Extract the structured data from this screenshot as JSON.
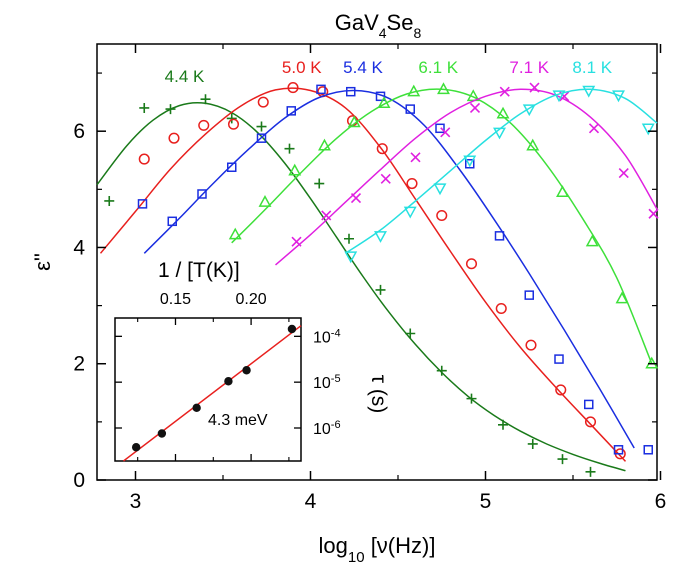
{
  "chart_data": [
    {
      "type": "scatter",
      "title": "GaV4Se8",
      "title_main": "GaV",
      "title_sub1": "4",
      "title_mid": "Se",
      "title_sub2": "8",
      "xlabel": "log10 [ν(Hz)]",
      "xlabel_main": "log",
      "xlabel_sub": "10",
      "xlabel_rest": " [ν(Hz)]",
      "ylabel": "ε\"",
      "xlim": [
        2.78,
        5.98
      ],
      "ylim": [
        0,
        7.5
      ],
      "x_ticks": [
        3,
        4,
        5,
        6
      ],
      "y_ticks": [
        0,
        2,
        4,
        6
      ],
      "x_tick_labels": [
        "3",
        "4",
        "5",
        "6"
      ],
      "y_tick_labels": [
        "0",
        "2",
        "4",
        "6"
      ],
      "grid": false,
      "series": [
        {
          "name": "4.4 K",
          "color": "#1a7a1a",
          "marker": "plus",
          "x": [
            2.85,
            3.05,
            3.2,
            3.4,
            3.55,
            3.72,
            3.88,
            4.05,
            4.22,
            4.4,
            4.57,
            4.75,
            4.92,
            5.1,
            5.27,
            5.44,
            5.6
          ],
          "y": [
            4.8,
            6.4,
            6.38,
            6.55,
            6.22,
            6.08,
            5.7,
            5.1,
            4.15,
            3.27,
            2.52,
            1.88,
            1.4,
            0.95,
            0.62,
            0.36,
            0.14
          ],
          "fit_x": [
            2.78,
            2.95,
            3.1,
            3.25,
            3.4,
            3.55,
            3.7,
            3.85,
            4.0,
            4.15,
            4.3,
            4.45,
            4.6,
            4.75,
            4.9,
            5.05,
            5.2,
            5.35,
            5.5,
            5.65,
            5.8
          ],
          "fit_y": [
            5.08,
            5.75,
            6.19,
            6.44,
            6.48,
            6.32,
            5.97,
            5.46,
            4.84,
            4.17,
            3.5,
            2.88,
            2.33,
            1.85,
            1.44,
            1.11,
            0.84,
            0.62,
            0.44,
            0.29,
            0.16
          ]
        },
        {
          "name": "5.0 K",
          "color": "#e8201e",
          "marker": "circle",
          "x": [
            3.05,
            3.22,
            3.39,
            3.56,
            3.73,
            3.9,
            4.07,
            4.24,
            4.41,
            4.58,
            4.75,
            4.92,
            5.09,
            5.26,
            5.43,
            5.6,
            5.77
          ],
          "y": [
            5.52,
            5.88,
            6.1,
            6.12,
            6.5,
            6.75,
            6.68,
            6.18,
            5.7,
            5.1,
            4.55,
            3.72,
            2.95,
            2.32,
            1.55,
            1.0,
            0.45
          ],
          "fit_x": [
            2.8,
            3.0,
            3.2,
            3.4,
            3.6,
            3.8,
            4.0,
            4.2,
            4.4,
            4.6,
            4.8,
            5.0,
            5.2,
            5.4,
            5.6,
            5.8
          ],
          "fit_y": [
            3.9,
            4.62,
            5.35,
            5.95,
            6.43,
            6.71,
            6.7,
            6.4,
            5.72,
            4.83,
            3.93,
            3.06,
            2.28,
            1.6,
            0.96,
            0.32
          ]
        },
        {
          "name": "5.4 K",
          "color": "#1a2ee0",
          "marker": "square",
          "x": [
            3.04,
            3.21,
            3.38,
            3.55,
            3.72,
            3.89,
            4.06,
            4.23,
            4.4,
            4.57,
            4.74,
            4.91,
            5.08,
            5.25,
            5.42,
            5.59,
            5.76,
            5.93
          ],
          "y": [
            4.75,
            4.45,
            4.92,
            5.38,
            5.88,
            6.35,
            6.72,
            6.68,
            6.6,
            6.38,
            6.05,
            5.44,
            4.2,
            3.18,
            2.08,
            1.3,
            0.52,
            0.52
          ],
          "fit_x": [
            3.05,
            3.25,
            3.45,
            3.65,
            3.85,
            4.05,
            4.25,
            4.45,
            4.65,
            4.85,
            5.05,
            5.25,
            5.45,
            5.65,
            5.85
          ],
          "fit_y": [
            3.9,
            4.5,
            5.12,
            5.7,
            6.22,
            6.58,
            6.7,
            6.56,
            6.1,
            5.35,
            4.48,
            3.55,
            2.58,
            1.58,
            0.55
          ]
        },
        {
          "name": "6.1 K",
          "color": "#3ee03a",
          "marker": "triangle",
          "x": [
            3.57,
            3.74,
            3.91,
            4.08,
            4.25,
            4.42,
            4.59,
            4.76,
            4.93,
            5.1,
            5.27,
            5.44,
            5.61,
            5.78,
            5.95
          ],
          "y": [
            4.22,
            4.78,
            5.32,
            5.75,
            6.15,
            6.48,
            6.68,
            6.72,
            6.6,
            6.3,
            5.75,
            4.95,
            4.1,
            3.12,
            2.0
          ],
          "fit_x": [
            3.55,
            3.75,
            3.95,
            4.15,
            4.35,
            4.55,
            4.75,
            4.95,
            5.15,
            5.35,
            5.55,
            5.75,
            5.95
          ],
          "fit_y": [
            4.08,
            4.68,
            5.3,
            5.88,
            6.34,
            6.64,
            6.72,
            6.56,
            6.12,
            5.42,
            4.52,
            3.48,
            2.0
          ]
        },
        {
          "name": "7.1 K",
          "color": "#e020e0",
          "marker": "cross",
          "x": [
            3.92,
            4.09,
            4.26,
            4.43,
            4.6,
            4.77,
            4.94,
            5.11,
            5.28,
            5.45,
            5.62,
            5.79,
            5.96
          ],
          "y": [
            4.1,
            4.55,
            4.85,
            5.18,
            5.55,
            5.98,
            6.4,
            6.68,
            6.75,
            6.6,
            6.05,
            5.28,
            4.58
          ],
          "fit_x": [
            3.8,
            4.0,
            4.2,
            4.4,
            4.6,
            4.8,
            5.0,
            5.2,
            5.4,
            5.6,
            5.8,
            5.98
          ],
          "fit_y": [
            3.7,
            4.22,
            4.78,
            5.34,
            5.88,
            6.32,
            6.6,
            6.72,
            6.62,
            6.24,
            5.58,
            4.66
          ]
        },
        {
          "name": "8.1 K",
          "color": "#28e0e0",
          "marker": "triangle-down",
          "x": [
            4.23,
            4.4,
            4.57,
            4.74,
            4.91,
            5.08,
            5.25,
            5.42,
            5.59,
            5.76,
            5.93
          ],
          "y": [
            3.85,
            4.2,
            4.62,
            5.02,
            5.5,
            5.98,
            6.38,
            6.62,
            6.7,
            6.62,
            6.05
          ],
          "fit_x": [
            4.2,
            4.4,
            4.6,
            4.8,
            5.0,
            5.2,
            5.4,
            5.6,
            5.8,
            5.98
          ],
          "fit_y": [
            3.9,
            4.3,
            4.8,
            5.32,
            5.84,
            6.3,
            6.62,
            6.72,
            6.56,
            6.14
          ]
        }
      ]
    },
    {
      "type": "scatter",
      "xlabel": "1 / [T(K)]",
      "ylabel": "τ (s)",
      "x_tick_labels": [
        "0.15",
        "0.20"
      ],
      "y_tick_labels": [
        "10-4",
        "10-5",
        "10-6"
      ],
      "y_tick_base": "10",
      "y_tick_exps": [
        "-4",
        "-5",
        "-6"
      ],
      "annotation": "4.3 meV",
      "fit_color": "#e8201e",
      "marker_color": "#111111",
      "x": [
        0.124,
        0.141,
        0.164,
        0.185,
        0.197,
        0.227
      ],
      "y_log10": [
        -6.42,
        -6.12,
        -5.56,
        -4.98,
        -4.74,
        -3.84
      ],
      "x_ticks": [
        0.15,
        0.2
      ],
      "y_ticks_log10": [
        -4,
        -5,
        -6
      ],
      "xlim": [
        0.11,
        0.233
      ],
      "ylim_log10": [
        -6.72,
        -3.6
      ]
    }
  ]
}
